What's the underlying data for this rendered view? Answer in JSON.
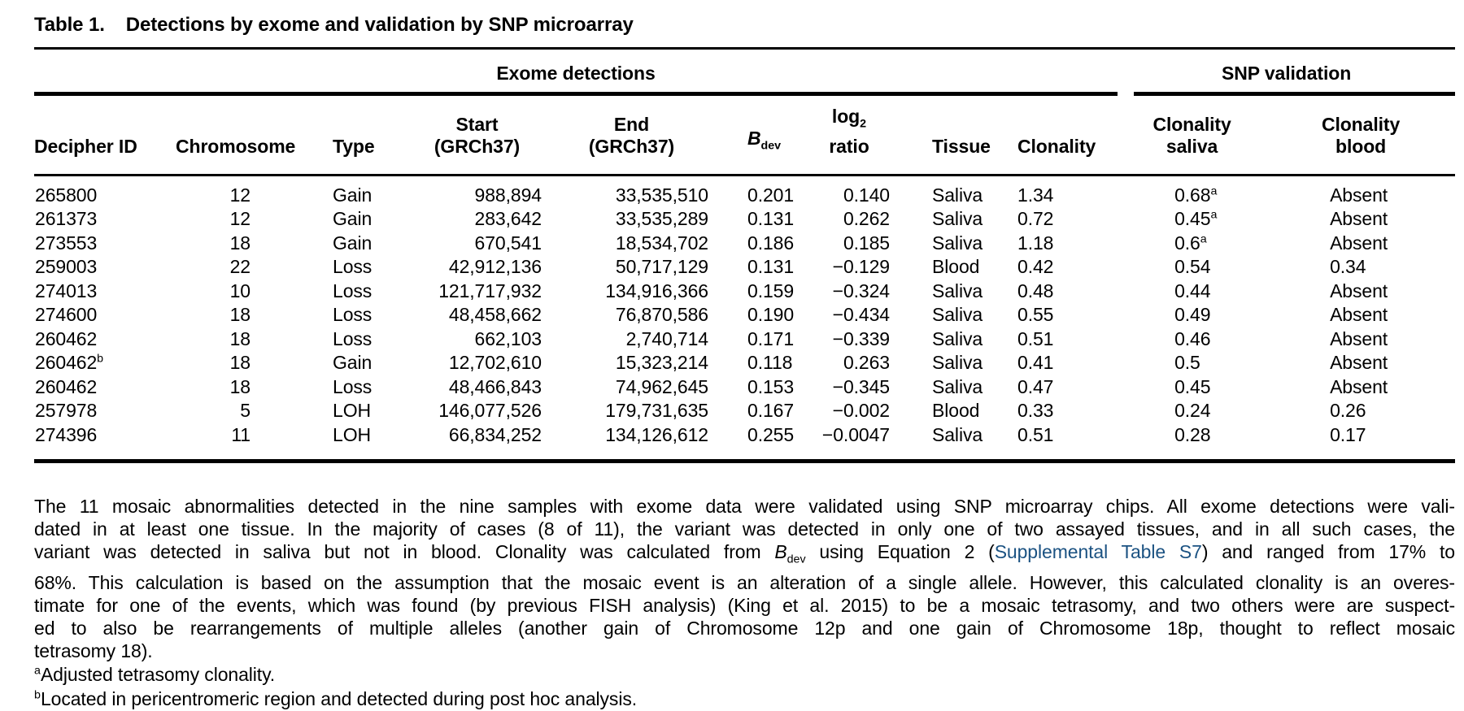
{
  "title": {
    "label": "Table 1.",
    "text": "Detections by exome and validation by SNP microarray"
  },
  "colors": {
    "text": "#000000",
    "link": "#1b5282",
    "background": "#ffffff"
  },
  "table": {
    "group_headers": [
      {
        "label": "Exome detections",
        "span": 9
      },
      {
        "label": "SNP validation",
        "span": 2
      }
    ],
    "columns": [
      {
        "id": "decipher-id",
        "label": "Decipher ID"
      },
      {
        "id": "chromosome",
        "label": "Chromosome"
      },
      {
        "id": "type",
        "label": "Type"
      },
      {
        "id": "start-grch37",
        "label": "Start\n(GRCh37)"
      },
      {
        "id": "end-grch37",
        "label": "End\n(GRCh37)"
      },
      {
        "id": "bdev",
        "special": "italic-sub",
        "main": "B",
        "sub": "dev"
      },
      {
        "id": "log2-ratio",
        "special": "sub-stack",
        "main": "log",
        "sub": "2",
        "line2": "ratio"
      },
      {
        "id": "tissue",
        "label": "Tissue"
      },
      {
        "id": "clonality",
        "label": "Clonality"
      },
      {
        "id": "clonality-saliva",
        "label": "Clonality\nsaliva"
      },
      {
        "id": "clonality-blood",
        "label": "Clonality\nblood"
      }
    ],
    "rows": [
      [
        "265800",
        "12",
        "Gain",
        "988,894",
        "33,535,510",
        "0.201",
        "0.140",
        "Saliva",
        "1.34",
        "0.68^a",
        "Absent"
      ],
      [
        "261373",
        "12",
        "Gain",
        "283,642",
        "33,535,289",
        "0.131",
        "0.262",
        "Saliva",
        "0.72",
        "0.45^a",
        "Absent"
      ],
      [
        "273553",
        "18",
        "Gain",
        "670,541",
        "18,534,702",
        "0.186",
        "0.185",
        "Saliva",
        "1.18",
        "0.6^a",
        "Absent"
      ],
      [
        "259003",
        "22",
        "Loss",
        "42,912,136",
        "50,717,129",
        "0.131",
        "−0.129",
        "Blood",
        "0.42",
        "0.54",
        "0.34"
      ],
      [
        "274013",
        "10",
        "Loss",
        "121,717,932",
        "134,916,366",
        "0.159",
        "−0.324",
        "Saliva",
        "0.48",
        "0.44",
        "Absent"
      ],
      [
        "274600",
        "18",
        "Loss",
        "48,458,662",
        "76,870,586",
        "0.190",
        "−0.434",
        "Saliva",
        "0.55",
        "0.49",
        "Absent"
      ],
      [
        "260462",
        "18",
        "Loss",
        "662,103",
        "2,740,714",
        "0.171",
        "−0.339",
        "Saliva",
        "0.51",
        "0.46",
        "Absent"
      ],
      [
        "260462^b",
        "18",
        "Gain",
        "12,702,610",
        "15,323,214",
        "0.118",
        "0.263",
        "Saliva",
        "0.41",
        "0.5",
        "Absent"
      ],
      [
        "260462",
        "18",
        "Loss",
        "48,466,843",
        "74,962,645",
        "0.153",
        "−0.345",
        "Saliva",
        "0.47",
        "0.45",
        "Absent"
      ],
      [
        "257978",
        "5",
        "LOH",
        "146,077,526",
        "179,731,635",
        "0.167",
        "−0.002",
        "Blood",
        "0.33",
        "0.24",
        "0.26"
      ],
      [
        "274396",
        "11",
        "LOH",
        "66,834,252",
        "134,126,612",
        "0.255",
        "−0.0047",
        "Saliva",
        "0.51",
        "0.28",
        "0.17"
      ]
    ]
  },
  "footer": {
    "lines": [
      [
        {
          "text": "The 11 mosaic abnormalities detected in the nine samples with exome data were validated using SNP microarray chips. All exome detections were vali-"
        }
      ],
      [
        {
          "text": "dated in at least one tissue. In the majority of cases (8 of 11), the variant was detected in only one of two assayed tissues, and in all such cases, the"
        }
      ],
      [
        {
          "text": "variant was detected in saliva but not in blood. Clonality was calculated from "
        },
        {
          "bdev": {
            "main": "B",
            "sub": "dev"
          }
        },
        {
          "text": " using Equation 2 ("
        },
        {
          "link": "Supplemental Table S7"
        },
        {
          "text": ") and ranged from 17% to"
        }
      ],
      [
        {
          "text": "68%. This calculation is based on the assumption that the mosaic event is an alteration of a single allele. However, this calculated clonality is an overes-"
        }
      ],
      [
        {
          "text": "timate for one of the events, which was found (by previous FISH analysis) (King et al. 2015) to be a mosaic tetrasomy, and two others were are suspect-"
        }
      ],
      [
        {
          "text": "ed to also be rearrangements of multiple alleles (another gain of Chromosome 12p and one gain of Chromosome 18p, thought to reflect mosaic"
        }
      ],
      [
        {
          "text": "tetrasomy 18)."
        }
      ]
    ]
  },
  "footnotes": [
    {
      "marker": "a",
      "text": "Adjusted tetrasomy clonality."
    },
    {
      "marker": "b",
      "text": "Located in pericentromeric region and detected during post hoc analysis."
    }
  ]
}
